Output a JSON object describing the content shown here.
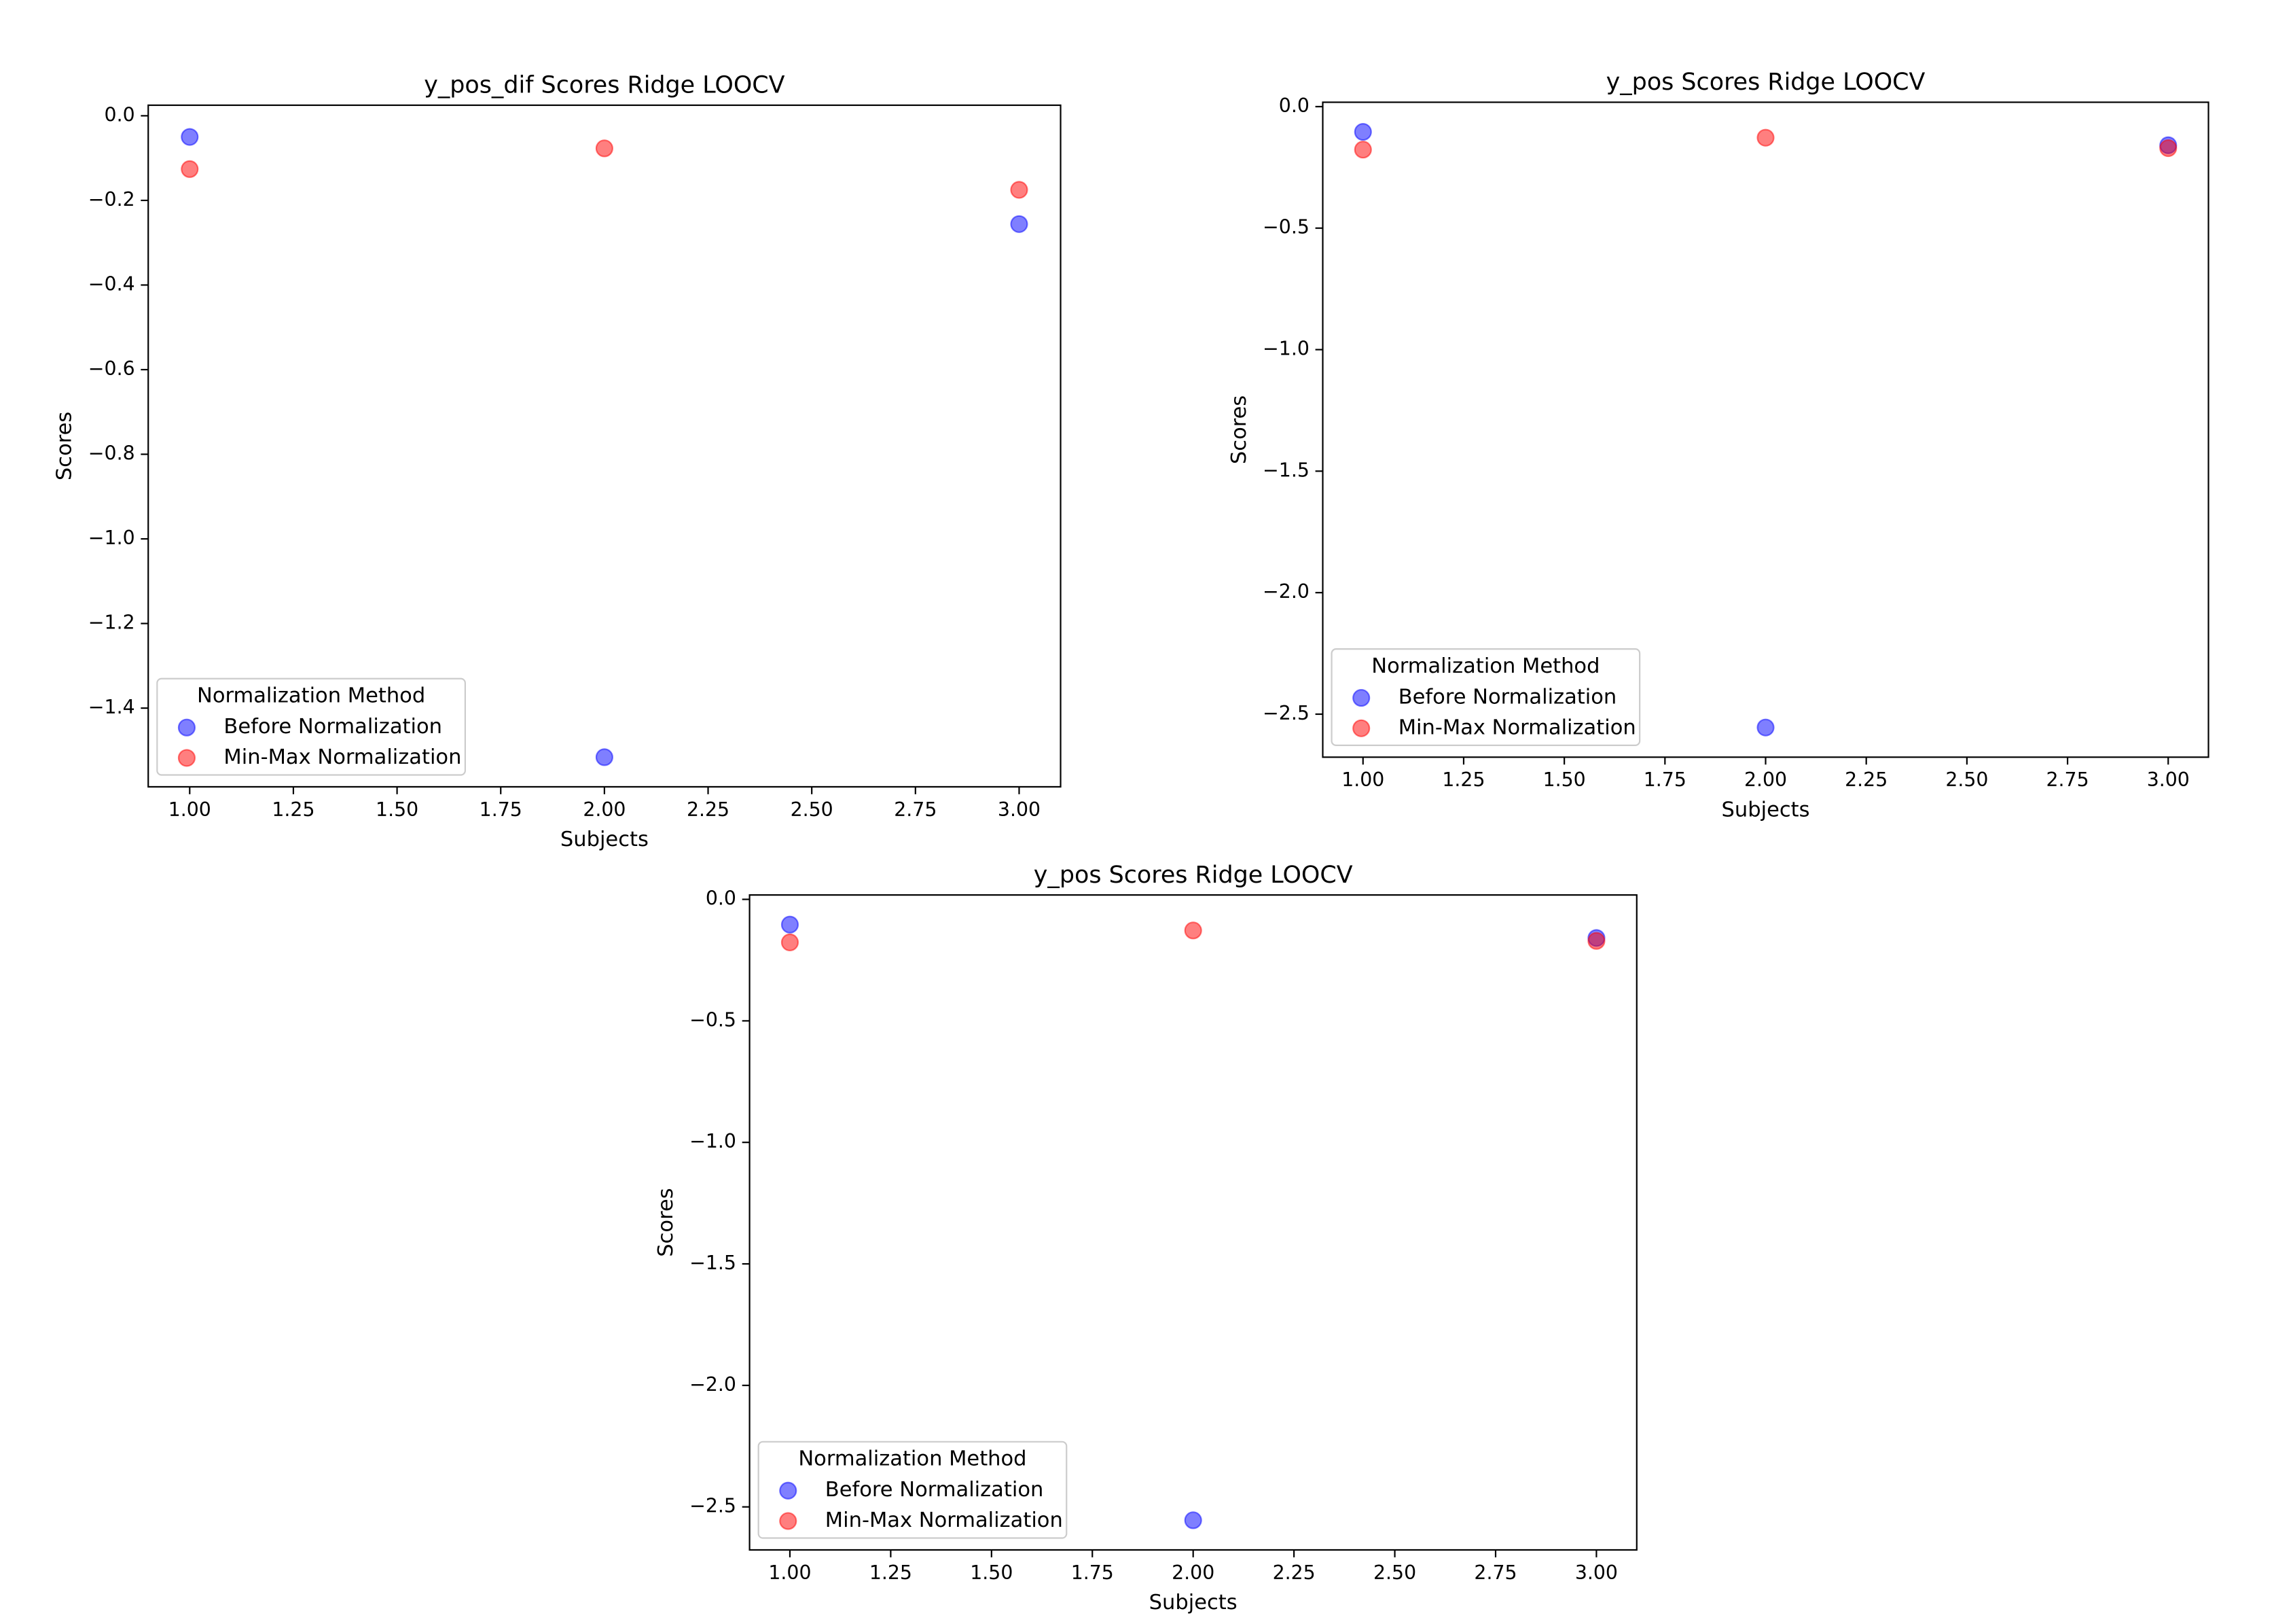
{
  "chart_data": [
    {
      "type": "scatter",
      "title": "y_pos_dif Scores Ridge LOOCV",
      "x_label": "Subjects",
      "y_label": "Scores",
      "legend_title": "Normalization Method",
      "legend_loc": "lower left",
      "xlim": [
        0.9,
        3.1
      ],
      "ylim": [
        -1.586,
        0.025
      ],
      "xticks": [
        {
          "value": 1,
          "label": "1.00"
        },
        {
          "value": 1.25,
          "label": "1.25"
        },
        {
          "value": 1.5,
          "label": "1.50"
        },
        {
          "value": 1.75,
          "label": "1.75"
        },
        {
          "value": 2,
          "label": "2.00"
        },
        {
          "value": 2.25,
          "label": "2.25"
        },
        {
          "value": 2.5,
          "label": "2.50"
        },
        {
          "value": 2.75,
          "label": "2.75"
        },
        {
          "value": 3,
          "label": "3.00"
        }
      ],
      "yticks": [
        {
          "value": 0,
          "label": "0.0"
        },
        {
          "value": -0.2,
          "label": "−0.2"
        },
        {
          "value": -0.4,
          "label": "−0.4"
        },
        {
          "value": -0.6,
          "label": "−0.6"
        },
        {
          "value": -0.8,
          "label": "−0.8"
        },
        {
          "value": -1.0,
          "label": "−1.0"
        },
        {
          "value": -1.2,
          "label": "−1.2"
        },
        {
          "value": -1.4,
          "label": "−1.4"
        }
      ],
      "x": [
        1,
        2,
        3
      ],
      "series": [
        {
          "name": "Before Normalization",
          "color": "#0000ff",
          "values": [
            -0.05,
            -1.516,
            -0.256
          ]
        },
        {
          "name": "Min-Max Normalization",
          "color": "#ff0000",
          "values": [
            -0.126,
            -0.077,
            -0.175
          ]
        }
      ]
    },
    {
      "type": "scatter",
      "title": "y_pos Scores Ridge LOOCV",
      "x_label": "Subjects",
      "y_label": "Scores",
      "legend_title": "Normalization Method",
      "legend_loc": "lower left",
      "xlim": [
        0.9,
        3.1
      ],
      "ylim": [
        -2.677,
        0.018
      ],
      "xticks": [
        {
          "value": 1,
          "label": "1.00"
        },
        {
          "value": 1.25,
          "label": "1.25"
        },
        {
          "value": 1.5,
          "label": "1.50"
        },
        {
          "value": 1.75,
          "label": "1.75"
        },
        {
          "value": 2,
          "label": "2.00"
        },
        {
          "value": 2.25,
          "label": "2.25"
        },
        {
          "value": 2.5,
          "label": "2.50"
        },
        {
          "value": 2.75,
          "label": "2.75"
        },
        {
          "value": 3,
          "label": "3.00"
        }
      ],
      "yticks": [
        {
          "value": 0,
          "label": "0.0"
        },
        {
          "value": -0.5,
          "label": "−0.5"
        },
        {
          "value": -1.0,
          "label": "−1.0"
        },
        {
          "value": -1.5,
          "label": "−1.5"
        },
        {
          "value": -2.0,
          "label": "−2.0"
        },
        {
          "value": -2.5,
          "label": "−2.5"
        }
      ],
      "x": [
        1,
        2,
        3
      ],
      "series": [
        {
          "name": "Before Normalization",
          "color": "#0000ff",
          "values": [
            -0.104,
            -2.555,
            -0.159
          ]
        },
        {
          "name": "Min-Max Normalization",
          "color": "#ff0000",
          "values": [
            -0.177,
            -0.128,
            -0.171
          ]
        }
      ]
    },
    {
      "type": "scatter",
      "title": "y_pos Scores Ridge LOOCV",
      "x_label": "Subjects",
      "y_label": "Scores",
      "legend_title": "Normalization Method",
      "legend_loc": "lower left",
      "xlim": [
        0.9,
        3.1
      ],
      "ylim": [
        -2.677,
        0.018
      ],
      "xticks": [
        {
          "value": 1,
          "label": "1.00"
        },
        {
          "value": 1.25,
          "label": "1.25"
        },
        {
          "value": 1.5,
          "label": "1.50"
        },
        {
          "value": 1.75,
          "label": "1.75"
        },
        {
          "value": 2,
          "label": "2.00"
        },
        {
          "value": 2.25,
          "label": "2.25"
        },
        {
          "value": 2.5,
          "label": "2.50"
        },
        {
          "value": 2.75,
          "label": "2.75"
        },
        {
          "value": 3,
          "label": "3.00"
        }
      ],
      "yticks": [
        {
          "value": 0,
          "label": "0.0"
        },
        {
          "value": -0.5,
          "label": "−0.5"
        },
        {
          "value": -1.0,
          "label": "−1.0"
        },
        {
          "value": -1.5,
          "label": "−1.5"
        },
        {
          "value": -2.0,
          "label": "−2.0"
        },
        {
          "value": -2.5,
          "label": "−2.5"
        }
      ],
      "x": [
        1,
        2,
        3
      ],
      "series": [
        {
          "name": "Before Normalization",
          "color": "#0000ff",
          "values": [
            -0.104,
            -2.555,
            -0.159
          ]
        },
        {
          "name": "Min-Max Normalization",
          "color": "#ff0000",
          "values": [
            -0.177,
            -0.128,
            -0.171
          ]
        }
      ]
    }
  ]
}
